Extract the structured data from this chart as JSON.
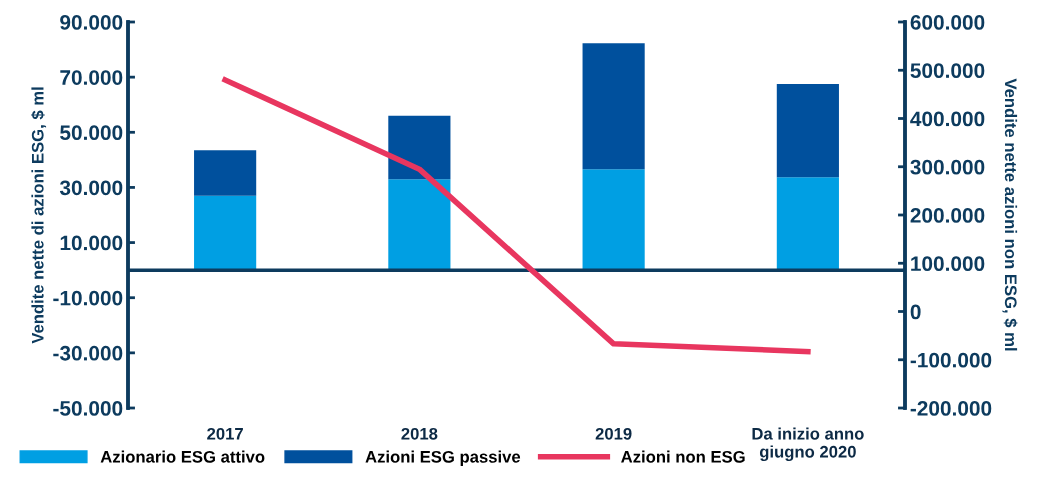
{
  "chart_data": {
    "type": "bar",
    "stacked": true,
    "categories": [
      "2017",
      "2018",
      "2019",
      "Da inizio anno\ngiugno 2020"
    ],
    "series": [
      {
        "name": "Azionario ESG attivo",
        "color": "#009fe3",
        "values": [
          27000,
          33000,
          36600,
          33700
        ]
      },
      {
        "name": "Azioni ESG passive",
        "color": "#00509d",
        "values": [
          16500,
          23000,
          45700,
          33800
        ]
      },
      {
        "name": "Azioni non ESG",
        "type": "line",
        "axis": "y2",
        "color": "#e8365f",
        "values": [
          480000,
          295000,
          -67000,
          -83000
        ]
      }
    ],
    "ylabel": "Vendite nette di azioni ESG, $ ml",
    "y2label": "Vendite nette azioni non ESG, $ ml",
    "ylim": [
      -50000,
      90000
    ],
    "yticks": [
      {
        "value": -50000,
        "label": "-50.000"
      },
      {
        "value": -30000,
        "label": "-30.000"
      },
      {
        "value": -10000,
        "label": "-10.000"
      },
      {
        "value": 10000,
        "label": "10.000"
      },
      {
        "value": 30000,
        "label": "30.000"
      },
      {
        "value": 50000,
        "label": "50.000"
      },
      {
        "value": 70000,
        "label": "70.000"
      },
      {
        "value": 90000,
        "label": "90.000"
      }
    ],
    "y2lim": [
      -200000,
      600000
    ],
    "y2ticks": [
      {
        "value": -200000,
        "label": "-200.000"
      },
      {
        "value": -100000,
        "label": "-100.000"
      },
      0,
      {
        "value": 100000,
        "label": "100.000"
      },
      {
        "value": 200000,
        "label": "200.000"
      },
      {
        "value": 300000,
        "label": "300.000"
      },
      {
        "value": 400000,
        "label": "400.000"
      },
      {
        "value": 500000,
        "label": "500.000"
      },
      {
        "value": 600000,
        "label": "600.000"
      }
    ],
    "grid": false,
    "legend": "bottom",
    "marker": "none",
    "line_style": "solid"
  }
}
